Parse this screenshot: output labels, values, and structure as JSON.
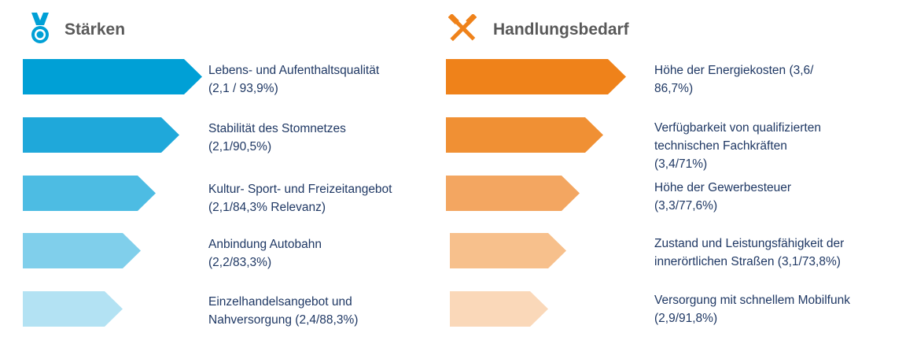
{
  "strengths": {
    "title": "Stärken",
    "icon": "medal-icon",
    "items": [
      {
        "line1": "Lebens- und Aufenthaltsqualität",
        "line2": "(2,1 / 93,9%)",
        "color": "#00a0d6"
      },
      {
        "line1": "Stabilität des Stomnetzes",
        "line2": "(2,1/90,5%)",
        "color": "#1fa8da"
      },
      {
        "line1": "Kultur- Sport- und Freizeitangebot",
        "line2": "(2,1/84,3% Relevanz)",
        "color": "#4dbce3"
      },
      {
        "line1": "Anbindung Autobahn",
        "line2": "(2,2/83,3%)",
        "color": "#80cfeb"
      },
      {
        "line1": "Einzelhandelsangebot und",
        "line2": "Nahversorgung (2,4/88,3%)",
        "color": "#b3e2f3"
      }
    ]
  },
  "needs": {
    "title": "Handlungsbedarf",
    "icon": "hammers-icon",
    "items": [
      {
        "line1": "Höhe der Energiekosten (3,6/",
        "line2": "86,7%)",
        "line3": "",
        "color": "#ef821a"
      },
      {
        "line1": "Verfügbarkeit von qualifizierten",
        "line2": "technischen Fachkräften",
        "line3": "(3,4/71%)",
        "color": "#f09034"
      },
      {
        "line1": "Höhe der Gewerbesteuer",
        "line2": "(3,3/77,6%)",
        "line3": "",
        "color": "#f3a661"
      },
      {
        "line1": "Zustand und Leistungsfähigkeit der",
        "line2": "innerörtlichen Straßen (3,1/73,8%)",
        "line3": "",
        "color": "#f7c08c"
      },
      {
        "line1": "Versorgung mit schnellem Mobilfunk",
        "line2": "(2,9/91,8%)",
        "line3": "",
        "color": "#fad8b9"
      }
    ]
  }
}
